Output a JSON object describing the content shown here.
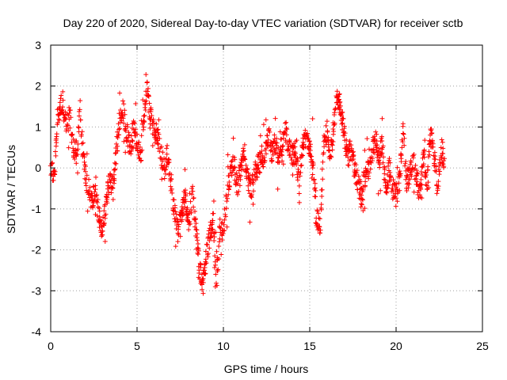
{
  "chart_data": {
    "type": "scatter",
    "title": "Day 220 of 2020, Sidereal Day-to-day VTEC variation (SDTVAR) for receiver sctb",
    "xlabel": "GPS time / hours",
    "ylabel": "SDTVAR / TECUs",
    "xlim": [
      0,
      25
    ],
    "ylim": [
      -4,
      3
    ],
    "x_ticks": [
      0,
      5,
      10,
      15,
      20,
      25
    ],
    "x_tick_labels": [
      "0",
      "5",
      "10",
      "15",
      "20",
      "25"
    ],
    "y_ticks": [
      -4,
      -3,
      -2,
      -1,
      0,
      1,
      2,
      3
    ],
    "y_tick_labels": [
      "-4",
      "-3",
      "-2",
      "-1",
      "0",
      "1",
      "2",
      "3"
    ],
    "grid": true,
    "marker": "+",
    "series_color": "#ff0000",
    "trend": [
      [
        0.0,
        0.1
      ],
      [
        0.2,
        -0.3
      ],
      [
        0.4,
        1.3
      ],
      [
        0.7,
        1.6
      ],
      [
        0.9,
        1.0
      ],
      [
        1.1,
        1.3
      ],
      [
        1.3,
        0.5
      ],
      [
        1.5,
        0.3
      ],
      [
        1.7,
        1.5
      ],
      [
        1.8,
        0.8
      ],
      [
        2.0,
        -0.2
      ],
      [
        2.2,
        -0.5
      ],
      [
        2.4,
        -0.9
      ],
      [
        2.6,
        -0.4
      ],
      [
        2.8,
        -1.2
      ],
      [
        3.0,
        -1.5
      ],
      [
        3.2,
        -0.9
      ],
      [
        3.4,
        -0.3
      ],
      [
        3.6,
        -0.6
      ],
      [
        3.8,
        0.4
      ],
      [
        4.0,
        1.2
      ],
      [
        4.2,
        1.4
      ],
      [
        4.4,
        0.9
      ],
      [
        4.6,
        0.4
      ],
      [
        4.8,
        1.0
      ],
      [
        5.0,
        0.6
      ],
      [
        5.2,
        0.2
      ],
      [
        5.4,
        1.3
      ],
      [
        5.6,
        1.9
      ],
      [
        5.8,
        1.2
      ],
      [
        6.0,
        0.9
      ],
      [
        6.2,
        0.8
      ],
      [
        6.4,
        0.3
      ],
      [
        6.6,
        0.0
      ],
      [
        6.8,
        0.4
      ],
      [
        7.0,
        -0.5
      ],
      [
        7.2,
        -1.2
      ],
      [
        7.4,
        -1.6
      ],
      [
        7.6,
        -1.0
      ],
      [
        7.8,
        -0.7
      ],
      [
        8.0,
        -1.5
      ],
      [
        8.2,
        -0.6
      ],
      [
        8.4,
        -1.4
      ],
      [
        8.6,
        -2.4
      ],
      [
        8.8,
        -2.9
      ],
      [
        9.0,
        -2.2
      ],
      [
        9.2,
        -1.7
      ],
      [
        9.4,
        -1.2
      ],
      [
        9.6,
        -2.8
      ],
      [
        9.8,
        -1.5
      ],
      [
        10.0,
        -1.6
      ],
      [
        10.2,
        -0.7
      ],
      [
        10.4,
        -0.1
      ],
      [
        10.6,
        0.2
      ],
      [
        10.8,
        -0.5
      ],
      [
        11.0,
        -0.1
      ],
      [
        11.2,
        0.4
      ],
      [
        11.4,
        -0.2
      ],
      [
        11.6,
        -0.6
      ],
      [
        11.8,
        -0.2
      ],
      [
        12.0,
        0.1
      ],
      [
        12.2,
        0.2
      ],
      [
        12.4,
        0.3
      ],
      [
        12.6,
        0.8
      ],
      [
        12.8,
        0.4
      ],
      [
        13.0,
        0.6
      ],
      [
        13.2,
        0.3
      ],
      [
        13.4,
        0.5
      ],
      [
        13.6,
        0.9
      ],
      [
        13.8,
        0.5
      ],
      [
        14.0,
        0.3
      ],
      [
        14.2,
        0.4
      ],
      [
        14.4,
        -0.5
      ],
      [
        14.6,
        0.6
      ],
      [
        14.8,
        0.7
      ],
      [
        15.0,
        0.4
      ],
      [
        15.2,
        0.2
      ],
      [
        15.4,
        -1.2
      ],
      [
        15.6,
        -1.5
      ],
      [
        15.8,
        0.5
      ],
      [
        16.0,
        0.9
      ],
      [
        16.2,
        0.3
      ],
      [
        16.4,
        1.0
      ],
      [
        16.6,
        1.8
      ],
      [
        16.8,
        1.4
      ],
      [
        17.0,
        0.8
      ],
      [
        17.2,
        0.2
      ],
      [
        17.4,
        0.6
      ],
      [
        17.6,
        0.0
      ],
      [
        17.8,
        -0.4
      ],
      [
        18.0,
        -0.7
      ],
      [
        18.2,
        -0.2
      ],
      [
        18.4,
        0.0
      ],
      [
        18.6,
        0.3
      ],
      [
        18.8,
        0.8
      ],
      [
        19.0,
        0.2
      ],
      [
        19.2,
        0.6
      ],
      [
        19.4,
        -0.6
      ],
      [
        19.6,
        0.0
      ],
      [
        19.8,
        -0.5
      ],
      [
        20.0,
        -0.7
      ],
      [
        20.2,
        -0.3
      ],
      [
        20.4,
        1.0
      ],
      [
        20.6,
        -0.4
      ],
      [
        20.8,
        -0.1
      ],
      [
        21.0,
        0.2
      ],
      [
        21.2,
        -0.3
      ],
      [
        21.4,
        -0.6
      ],
      [
        21.6,
        0.3
      ],
      [
        21.8,
        -0.4
      ],
      [
        22.0,
        0.8
      ],
      [
        22.2,
        0.3
      ],
      [
        22.4,
        -0.6
      ],
      [
        22.6,
        0.5
      ],
      [
        22.8,
        0.2
      ]
    ]
  }
}
